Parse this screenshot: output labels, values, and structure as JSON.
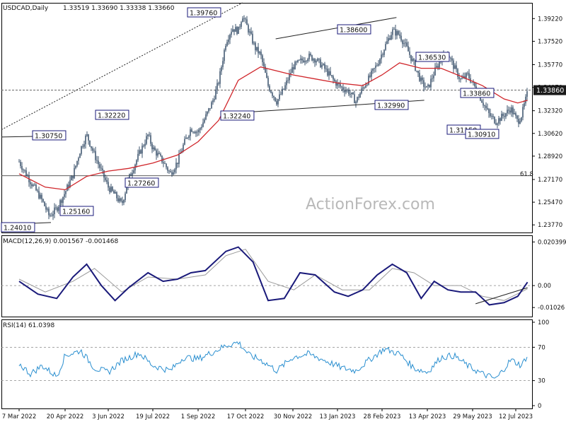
{
  "header": {
    "symbol": "USDCAD,Daily",
    "ohlc": "1.33519 1.33690 1.33338 1.33660"
  },
  "watermark": "ActionForex.com",
  "fib_label": "61.8",
  "current_price_label": "1.33860",
  "colors": {
    "candle": "#27415e",
    "ma": "#d0262b",
    "macd": "#1a1a7a",
    "signal": "#9a9a9a",
    "rsi": "#2a8fd0",
    "grid_dash": "#555555",
    "label_border": "#1a1a7a"
  },
  "chart_data": [
    {
      "type": "line",
      "panel": "price",
      "title": "USDCAD,Daily",
      "x_ticks": [
        "7 Mar 2022",
        "20 Apr 2022",
        "3 Jun 2022",
        "19 Jul 2022",
        "1 Sep 2022",
        "17 Oct 2022",
        "30 Nov 2022",
        "13 Jan 2023",
        "28 Feb 2023",
        "13 Apr 2023",
        "29 May 2023",
        "12 Jul 2023"
      ],
      "y_ticks": [
        "1.39220",
        "1.37520",
        "1.35770",
        "1.34070",
        "1.32320",
        "1.30620",
        "1.28920",
        "1.27170",
        "1.25470",
        "1.23770"
      ],
      "ylim": [
        1.232,
        1.404
      ],
      "close_path": {
        "x": [
          "2022-03-07",
          "2022-03-18",
          "2022-03-29",
          "2022-04-05",
          "2022-04-12",
          "2022-04-20",
          "2022-04-28",
          "2022-05-06",
          "2022-05-12",
          "2022-05-20",
          "2022-05-27",
          "2022-06-03",
          "2022-06-10",
          "2022-06-17",
          "2022-06-24",
          "2022-07-05",
          "2022-07-14",
          "2022-07-19",
          "2022-07-29",
          "2022-08-05",
          "2022-08-12",
          "2022-08-18",
          "2022-08-25",
          "2022-09-01",
          "2022-09-08",
          "2022-09-15",
          "2022-09-21",
          "2022-09-28",
          "2022-10-04",
          "2022-10-10",
          "2022-10-14",
          "2022-10-21",
          "2022-10-26",
          "2022-10-31",
          "2022-11-07",
          "2022-11-15",
          "2022-11-22",
          "2022-11-30",
          "2022-12-07",
          "2022-12-15",
          "2022-12-22",
          "2022-12-30",
          "2023-01-10",
          "2023-01-18",
          "2023-01-24",
          "2023-02-01",
          "2023-02-08",
          "2023-02-15",
          "2023-02-23",
          "2023-03-02",
          "2023-03-10",
          "2023-03-17",
          "2023-03-24",
          "2023-03-31",
          "2023-04-07",
          "2023-04-13",
          "2023-04-20",
          "2023-04-27",
          "2023-05-04",
          "2023-05-10",
          "2023-05-17",
          "2023-05-24",
          "2023-06-01",
          "2023-06-08",
          "2023-06-15",
          "2023-06-22",
          "2023-06-30",
          "2023-07-07",
          "2023-07-14",
          "2023-07-18",
          "2023-07-24"
        ],
        "y": [
          1.285,
          1.27,
          1.256,
          1.244,
          1.25,
          1.262,
          1.275,
          1.295,
          1.305,
          1.29,
          1.278,
          1.266,
          1.26,
          1.253,
          1.272,
          1.291,
          1.305,
          1.295,
          1.285,
          1.276,
          1.285,
          1.298,
          1.31,
          1.307,
          1.318,
          1.33,
          1.345,
          1.375,
          1.385,
          1.383,
          1.395,
          1.381,
          1.37,
          1.365,
          1.342,
          1.33,
          1.34,
          1.356,
          1.36,
          1.364,
          1.362,
          1.356,
          1.345,
          1.34,
          1.338,
          1.33,
          1.34,
          1.348,
          1.358,
          1.37,
          1.383,
          1.38,
          1.37,
          1.358,
          1.345,
          1.339,
          1.352,
          1.362,
          1.366,
          1.356,
          1.346,
          1.35,
          1.34,
          1.33,
          1.32,
          1.315,
          1.32,
          1.325,
          1.315,
          1.32,
          1.3366
        ]
      },
      "ma_line": {
        "x": [
          "2022-03-07",
          "2022-04-01",
          "2022-04-20",
          "2022-05-12",
          "2022-06-03",
          "2022-06-24",
          "2022-07-19",
          "2022-08-12",
          "2022-09-01",
          "2022-09-21",
          "2022-10-10",
          "2022-10-31",
          "2022-11-30",
          "2022-12-22",
          "2023-01-13",
          "2023-02-08",
          "2023-02-28",
          "2023-03-17",
          "2023-04-07",
          "2023-04-27",
          "2023-05-17",
          "2023-06-08",
          "2023-06-30",
          "2023-07-14",
          "2023-07-24"
        ],
        "y": [
          1.276,
          1.266,
          1.264,
          1.274,
          1.278,
          1.28,
          1.284,
          1.29,
          1.3,
          1.316,
          1.346,
          1.356,
          1.35,
          1.347,
          1.344,
          1.342,
          1.35,
          1.359,
          1.355,
          1.355,
          1.349,
          1.342,
          1.332,
          1.329,
          1.331
        ]
      },
      "levels": [
        {
          "label": "1.39760",
          "y": 1.3976,
          "x": "2022-10-11"
        },
        {
          "label": "1.38600",
          "y": 1.386,
          "x": "2023-02-14"
        },
        {
          "label": "1.36530",
          "y": 1.3653,
          "x": "2023-04-17"
        },
        {
          "label": "1.33860",
          "y": 1.3386,
          "x": "2023-06-06"
        },
        {
          "label": "1.32990",
          "y": 1.3299,
          "x": "2023-03-24"
        },
        {
          "label": "1.32240",
          "y": 1.3224,
          "x": "2022-11-21"
        },
        {
          "label": "1.32220",
          "y": 1.3222,
          "x": "2022-08-12"
        },
        {
          "label": "1.31150",
          "y": 1.3115,
          "x": "2023-06-08"
        },
        {
          "label": "1.30910",
          "y": 1.3091,
          "x": "2023-06-29"
        },
        {
          "label": "1.30750",
          "y": 1.3075,
          "x": "2022-04-28"
        },
        {
          "label": "1.27260",
          "y": 1.2726,
          "x": "2022-07-14"
        },
        {
          "label": "1.25160",
          "y": 1.2516,
          "x": "2022-06-10"
        },
        {
          "label": "1.24010",
          "y": 1.2401,
          "x": "2022-04-07"
        }
      ],
      "horizontal_lines": [
        {
          "name": "fib-61.8",
          "y": 1.2745
        },
        {
          "name": "current-level",
          "y": 1.3386
        }
      ]
    },
    {
      "type": "line",
      "panel": "macd",
      "title": "MACD(12,26,9) 0.001567 -0.001468",
      "y_ticks": [
        "0.020399",
        "0.00",
        "-0.01026"
      ],
      "ylim": [
        -0.0145,
        0.0235
      ],
      "macd": {
        "x": [
          "2022-03-07",
          "2022-03-25",
          "2022-04-12",
          "2022-04-28",
          "2022-05-12",
          "2022-05-27",
          "2022-06-10",
          "2022-06-24",
          "2022-07-14",
          "2022-07-29",
          "2022-08-12",
          "2022-08-25",
          "2022-09-08",
          "2022-09-28",
          "2022-10-10",
          "2022-10-24",
          "2022-11-07",
          "2022-11-22",
          "2022-12-07",
          "2022-12-22",
          "2023-01-10",
          "2023-01-24",
          "2023-02-08",
          "2023-02-23",
          "2023-03-10",
          "2023-03-24",
          "2023-04-07",
          "2023-04-20",
          "2023-05-04",
          "2023-05-17",
          "2023-06-01",
          "2023-06-15",
          "2023-06-30",
          "2023-07-14",
          "2023-07-24"
        ],
        "y": [
          0.002,
          -0.004,
          -0.006,
          0.004,
          0.01,
          0.0,
          -0.007,
          -0.001,
          0.006,
          0.002,
          0.003,
          0.006,
          0.007,
          0.016,
          0.018,
          0.011,
          -0.007,
          -0.006,
          0.006,
          0.005,
          -0.003,
          -0.005,
          -0.002,
          0.005,
          0.01,
          0.006,
          -0.006,
          0.002,
          -0.002,
          -0.003,
          -0.003,
          -0.009,
          -0.008,
          -0.005,
          0.0016
        ]
      },
      "signal": {
        "x": [
          "2022-03-07",
          "2022-04-01",
          "2022-04-28",
          "2022-05-20",
          "2022-06-17",
          "2022-07-14",
          "2022-08-12",
          "2022-09-08",
          "2022-09-28",
          "2022-10-17",
          "2022-11-07",
          "2022-12-01",
          "2022-12-22",
          "2023-01-18",
          "2023-02-15",
          "2023-03-10",
          "2023-03-31",
          "2023-04-20",
          "2023-05-17",
          "2023-06-08",
          "2023-06-30",
          "2023-07-24"
        ],
        "y": [
          0.003,
          -0.003,
          0.002,
          0.008,
          -0.003,
          0.004,
          0.003,
          0.005,
          0.014,
          0.017,
          0.002,
          -0.002,
          0.005,
          -0.002,
          -0.002,
          0.008,
          0.006,
          0.0,
          0.0,
          -0.005,
          -0.007,
          -0.0015
        ]
      }
    },
    {
      "type": "line",
      "panel": "rsi",
      "title": "RSI(14) 61.0398",
      "y_ticks": [
        "100",
        "70",
        "30",
        "0"
      ],
      "ylim": [
        0,
        100
      ],
      "levels": [
        70,
        30
      ],
      "rsi": {
        "x": [
          "2022-03-07",
          "2022-03-18",
          "2022-03-29",
          "2022-04-12",
          "2022-04-20",
          "2022-05-06",
          "2022-05-20",
          "2022-06-03",
          "2022-06-17",
          "2022-07-05",
          "2022-07-19",
          "2022-08-05",
          "2022-08-18",
          "2022-09-01",
          "2022-09-15",
          "2022-09-28",
          "2022-10-10",
          "2022-10-21",
          "2022-10-31",
          "2022-11-15",
          "2022-11-30",
          "2022-12-15",
          "2022-12-30",
          "2023-01-18",
          "2023-02-01",
          "2023-02-15",
          "2023-03-02",
          "2023-03-17",
          "2023-03-31",
          "2023-04-13",
          "2023-04-27",
          "2023-05-10",
          "2023-05-24",
          "2023-06-08",
          "2023-06-22",
          "2023-07-07",
          "2023-07-18",
          "2023-07-24"
        ],
        "y": [
          50,
          38,
          48,
          35,
          60,
          66,
          45,
          40,
          54,
          63,
          48,
          42,
          58,
          56,
          64,
          72,
          76,
          60,
          55,
          42,
          58,
          62,
          55,
          45,
          42,
          55,
          68,
          62,
          45,
          40,
          58,
          60,
          48,
          38,
          32,
          55,
          48,
          61
        ]
      }
    }
  ]
}
